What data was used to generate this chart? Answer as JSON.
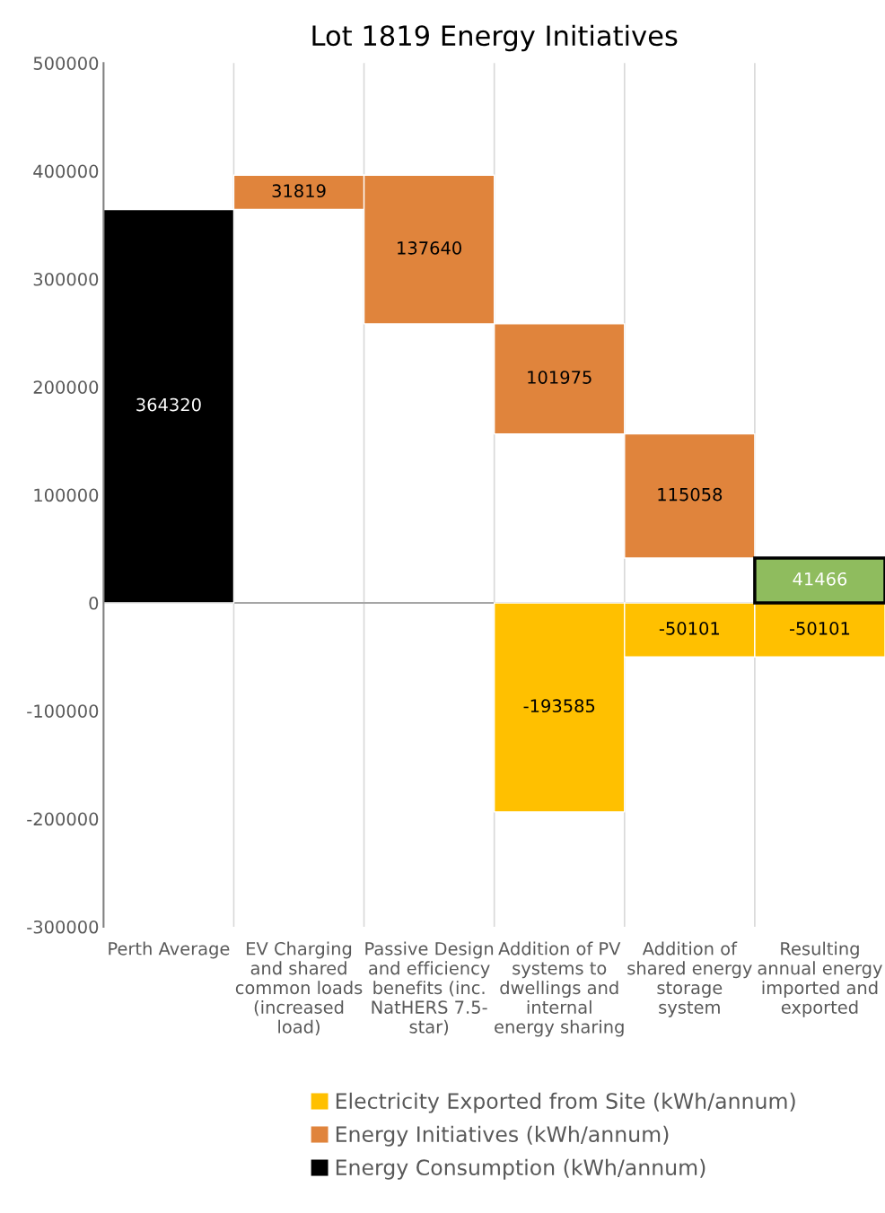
{
  "chart_data": {
    "type": "bar",
    "title": "Lot 1819 Energy Initiatives",
    "categories": [
      "Perth Average",
      "EV Charging\nand shared\ncommon loads\n(increased\nload)",
      "Passive Design\nand efficiency\nbenefits (inc.\nNatHERS 7.5-\nstar)",
      "Addition of PV\nsystems to\ndwellings and\ninternal\nenergy sharing",
      "Addition of\nshared energy\nstorage\nsystem",
      "Resulting\nannual energy\nimported and\nexported"
    ],
    "series": [
      {
        "name": "Electricity Exported from Site (kWh/annum)",
        "color": "#ffc000",
        "values": [
          null,
          null,
          null,
          -193585,
          -50101,
          -50101
        ],
        "base": [
          null,
          null,
          null,
          0,
          0,
          0
        ]
      },
      {
        "name": "Energy Initiatives (kWh/annum)",
        "color": "#e0843c",
        "values": [
          null,
          31819,
          137640,
          101975,
          115058,
          null
        ],
        "base": [
          null,
          364320,
          258499,
          156524,
          41466,
          null
        ]
      },
      {
        "name": "Energy Consumption (kWh/annum)",
        "color": "#000000",
        "colors": [
          "#000000",
          null,
          null,
          null,
          null,
          "#8fbc5e"
        ],
        "values": [
          364320,
          null,
          null,
          null,
          null,
          41466
        ],
        "base": [
          0,
          null,
          null,
          null,
          null,
          0
        ]
      }
    ],
    "ylim": [
      -300000,
      500000
    ],
    "yticks": [
      -300000,
      -200000,
      -100000,
      0,
      100000,
      200000,
      300000,
      400000,
      500000
    ],
    "grid": "x",
    "legend": "bottom",
    "data_labels": true
  }
}
